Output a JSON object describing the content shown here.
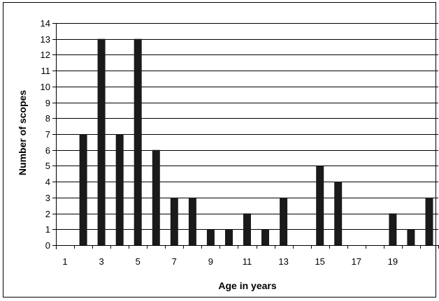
{
  "chart_data": {
    "type": "bar",
    "title": "",
    "xlabel": "Age in years",
    "ylabel": "Number of scopes",
    "categories": [
      "1",
      "2",
      "3",
      "4",
      "5",
      "6",
      "7",
      "8",
      "9",
      "10",
      "11",
      "12",
      "13",
      "14",
      "15",
      "16",
      "17",
      "18",
      "19",
      "20",
      "21"
    ],
    "x_tick_labels": [
      "1",
      "3",
      "5",
      "7",
      "9",
      "11",
      "13",
      "15",
      "17",
      "19"
    ],
    "values": [
      0,
      7,
      13,
      7,
      13,
      6,
      3,
      3,
      1,
      1,
      2,
      1,
      3,
      0,
      5,
      4,
      0,
      0,
      2,
      1,
      3
    ],
    "ylim": [
      0,
      14
    ],
    "y_ticks": [
      "0",
      "1",
      "2",
      "3",
      "4",
      "5",
      "6",
      "7",
      "8",
      "9",
      "10",
      "11",
      "12",
      "13",
      "14"
    ],
    "grid": true,
    "legend": "none",
    "bar_color": "#1a1a1a",
    "grid_color": "#000000"
  }
}
